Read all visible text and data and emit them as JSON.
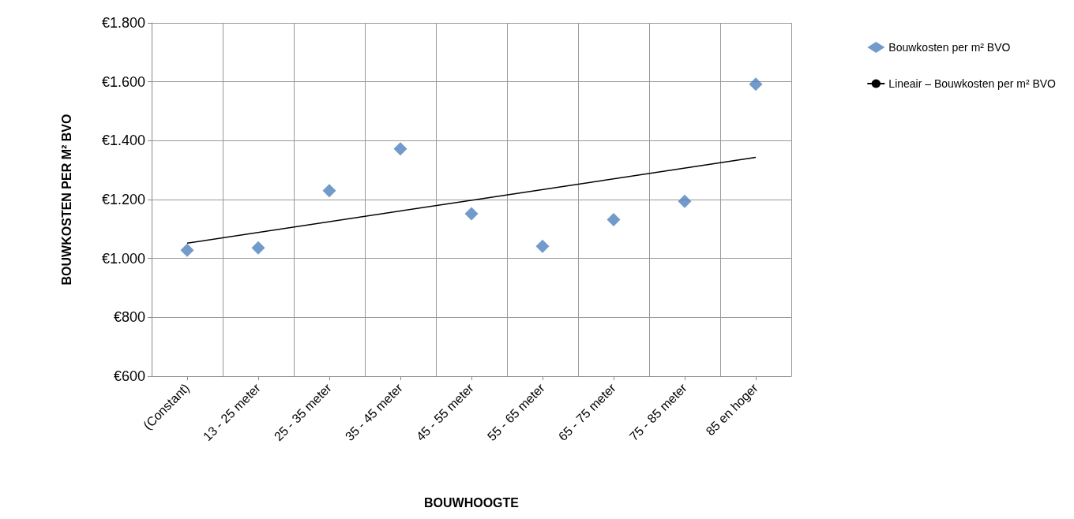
{
  "chart_data": {
    "type": "scatter",
    "xlabel": "BOUWHOOGTE",
    "ylabel": "BOUWKOSTEN PER M² BVO",
    "categories": [
      "(Constant)",
      "13 - 25 meter",
      "25 - 35 meter",
      "35 - 45 meter",
      "45 - 55 meter",
      "55 - 65 meter",
      "65 - 75 meter",
      "75 - 85 meter",
      "85 en hoger"
    ],
    "ylim": [
      600,
      1800
    ],
    "yticks": [
      {
        "value": 600,
        "label": "€600"
      },
      {
        "value": 800,
        "label": "€800"
      },
      {
        "value": 1000,
        "label": "€1.000"
      },
      {
        "value": 1200,
        "label": "€1.200"
      },
      {
        "value": 1400,
        "label": "€1.400"
      },
      {
        "value": 1600,
        "label": "€1.600"
      },
      {
        "value": 1800,
        "label": "€1.800"
      }
    ],
    "grid": true,
    "legend": "top right",
    "marker": "diamond",
    "series": [
      {
        "name": "Bouwkosten per m² BVO",
        "color": "#4f81bd",
        "values": [
          1028,
          1036,
          1230,
          1372,
          1152,
          1041,
          1132,
          1194,
          1592
        ]
      },
      {
        "name": "Lineair – Bouwkosten per m² BVO",
        "type": "line",
        "line_style": "solid",
        "marker": "none",
        "color": "#000000",
        "values": [
          1052,
          null,
          null,
          null,
          null,
          null,
          null,
          null,
          1343
        ]
      }
    ]
  }
}
